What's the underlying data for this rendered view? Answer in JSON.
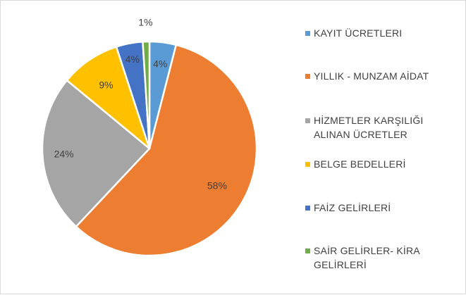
{
  "chart_data": {
    "type": "pie",
    "title": "",
    "start_angle_deg": 0,
    "direction": "clockwise",
    "slices": [
      {
        "label": "KAYIT ÜCRETLERI",
        "value": 4,
        "display": "4%",
        "color": "#5B9BD5"
      },
      {
        "label": "YILLIK - MUNZAM AİDAT",
        "value": 58,
        "display": "58%",
        "color": "#ED7D31"
      },
      {
        "label": "HİZMETLER KARŞILIĞI ALINAN ÜCRETLER",
        "value": 24,
        "display": "24%",
        "color": "#A5A5A5"
      },
      {
        "label": "BELGE BEDELLERİ",
        "value": 9,
        "display": "9%",
        "color": "#FFC000"
      },
      {
        "label": "FAİZ GELİRLERİ",
        "value": 4,
        "display": "4%",
        "color": "#4472C4"
      },
      {
        "label": "SAİR GELİRLER- KİRA GELİRLERİ",
        "value": 1,
        "display": "1%",
        "color": "#70AD47"
      }
    ],
    "legend_position": "right"
  }
}
